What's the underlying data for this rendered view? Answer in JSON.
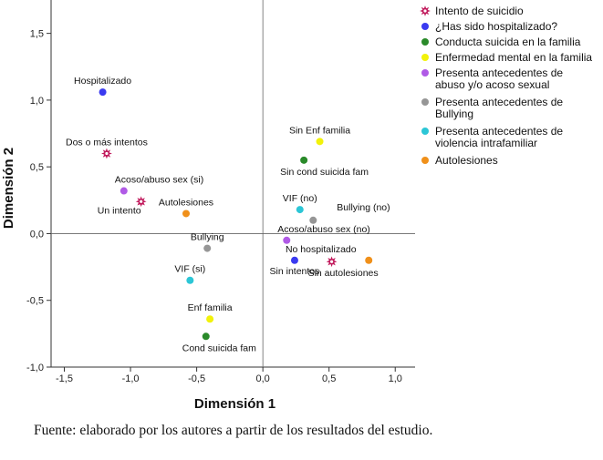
{
  "chart_data": {
    "type": "scatter",
    "xlabel": "Dimensión 1",
    "ylabel": "Dimensión 2",
    "xlim": [
      -1.6,
      1.15
    ],
    "ylim": [
      -1.0,
      1.75
    ],
    "xticks": [
      -1.5,
      -1.0,
      -0.5,
      0.0,
      0.5,
      1.0
    ],
    "yticks": [
      -1.0,
      -0.5,
      0.0,
      0.5,
      1.0,
      1.5
    ],
    "xtick_labels": [
      "-1,5",
      "-1,0",
      "-0,5",
      "0,0",
      "0,5",
      "1,0"
    ],
    "ytick_labels": [
      "-1,0",
      "-0,5",
      "0,0",
      "0,5",
      "1,0",
      "1,5"
    ],
    "reference_lines": {
      "x": 0.0,
      "y": 0.0
    },
    "legend_position": "right",
    "series": [
      {
        "name": "Intento de suicidio",
        "color": "#c0175a",
        "marker": "star",
        "points": [
          {
            "label": "Dos o más intentos",
            "x": -1.18,
            "y": 0.6,
            "label_pos": "above"
          },
          {
            "label": "Un intento",
            "x": -0.92,
            "y": 0.24,
            "label_pos": "below-left"
          },
          {
            "label": "Sin autolesiones",
            "x": 0.52,
            "y": -0.21,
            "label_pos": "below-right"
          }
        ]
      },
      {
        "name": "¿Has sido hospitalizado?",
        "color": "#3a3af0",
        "marker": "circle",
        "points": [
          {
            "label": "Hospitalizado",
            "x": -1.21,
            "y": 1.06,
            "label_pos": "above"
          },
          {
            "label": "No hospitalizado",
            "x": 0.24,
            "y": -0.2,
            "label_pos": "above-right"
          },
          {
            "label": "Sin intentos",
            "x": 0.24,
            "y": -0.2,
            "label_pos": "below"
          }
        ]
      },
      {
        "name": "Conducta suicida en la familia",
        "color": "#2a8a2a",
        "marker": "circle",
        "points": [
          {
            "label": "Sin cond suicida fam",
            "x": 0.31,
            "y": 0.55,
            "label_pos": "below-right"
          },
          {
            "label": "Cond suicida fam",
            "x": -0.43,
            "y": -0.77,
            "label_pos": "below-right"
          }
        ]
      },
      {
        "name": "Enfermedad mental en la familia",
        "color": "#f2f20a",
        "marker": "circle",
        "points": [
          {
            "label": "Sin Enf familia",
            "x": 0.43,
            "y": 0.69,
            "label_pos": "above"
          },
          {
            "label": "Enf familia",
            "x": -0.4,
            "y": -0.64,
            "label_pos": "above"
          }
        ]
      },
      {
        "name": "Presenta antecedentes de abuso y/o acoso sexual",
        "color": "#b05ae6",
        "marker": "circle",
        "points": [
          {
            "label": "Acoso/abuso sex (si)",
            "x": -1.05,
            "y": 0.32,
            "label_pos": "above-right"
          },
          {
            "label": "Acoso/abuso sex (no)",
            "x": 0.18,
            "y": -0.05,
            "label_pos": "above-right"
          }
        ]
      },
      {
        "name": "Presenta antecedentes de Bullying",
        "color": "#969696",
        "marker": "circle",
        "points": [
          {
            "label": "Bullying (no)",
            "x": 0.38,
            "y": 0.1,
            "label_pos": "right"
          },
          {
            "label": "Bullying",
            "x": -0.42,
            "y": -0.11,
            "label_pos": "above"
          }
        ]
      },
      {
        "name": "Presenta antecedentes de violencia intrafamiliar",
        "color": "#2cc6d6",
        "marker": "circle",
        "points": [
          {
            "label": "VIF (no)",
            "x": 0.28,
            "y": 0.18,
            "label_pos": "above"
          },
          {
            "label": "VIF (si)",
            "x": -0.55,
            "y": -0.35,
            "label_pos": "above"
          }
        ]
      },
      {
        "name": "Autolesiones",
        "color": "#f0901a",
        "marker": "circle",
        "points": [
          {
            "label": "Autolesiones",
            "x": -0.58,
            "y": 0.15,
            "label_pos": "above"
          },
          {
            "label": "",
            "x": 0.8,
            "y": -0.2,
            "label_pos": "none"
          }
        ]
      }
    ],
    "legend_entries": [
      {
        "lines": [
          "Intento de suicidio"
        ]
      },
      {
        "lines": [
          "¿Has sido hospitalizado?"
        ]
      },
      {
        "lines": [
          "Conducta suicida en la familia"
        ]
      },
      {
        "lines": [
          "Enfermedad mental en la familia"
        ]
      },
      {
        "lines": [
          "Presenta antecedentes de",
          "abuso y/o acoso sexual"
        ]
      },
      {
        "lines": [
          "Presenta antecedentes de",
          "Bullying"
        ]
      },
      {
        "lines": [
          "Presenta antecedentes de",
          "violencia intrafamiliar"
        ]
      },
      {
        "lines": [
          "Autolesiones"
        ]
      }
    ]
  },
  "caption": "Fuente: elaborado por los autores a partir de los resultados del estudio."
}
